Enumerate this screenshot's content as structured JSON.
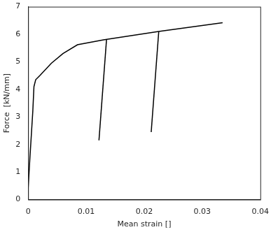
{
  "chart_data": {
    "type": "line",
    "x_label": "Mean strain []",
    "y_label": "Force  [kN/mm]",
    "xlim": [
      0,
      0.04
    ],
    "xticks": [
      0,
      0.01,
      0.02,
      0.03,
      0.04
    ],
    "ylim": [
      0,
      7
    ],
    "yticks": [
      0,
      1,
      2,
      3,
      4,
      5,
      6,
      7
    ],
    "grid": false,
    "series": [
      {
        "color": "#000000",
        "x": [
          0,
          0.0003,
          0.0008,
          0.001,
          0.0013,
          0.002,
          0.004,
          0.006,
          0.0085,
          0.013,
          0.0225,
          0.0335
        ],
        "values": [
          0.4,
          1.5,
          3.2,
          4.1,
          4.35,
          4.5,
          4.95,
          5.3,
          5.62,
          5.8,
          6.1,
          6.42
        ]
      },
      {
        "color": "#000000",
        "x": [
          0.0135,
          0.0122
        ],
        "values": [
          5.8,
          2.15
        ]
      },
      {
        "color": "#000000",
        "x": [
          0.0225,
          0.0212
        ],
        "values": [
          6.1,
          2.45
        ]
      }
    ]
  }
}
